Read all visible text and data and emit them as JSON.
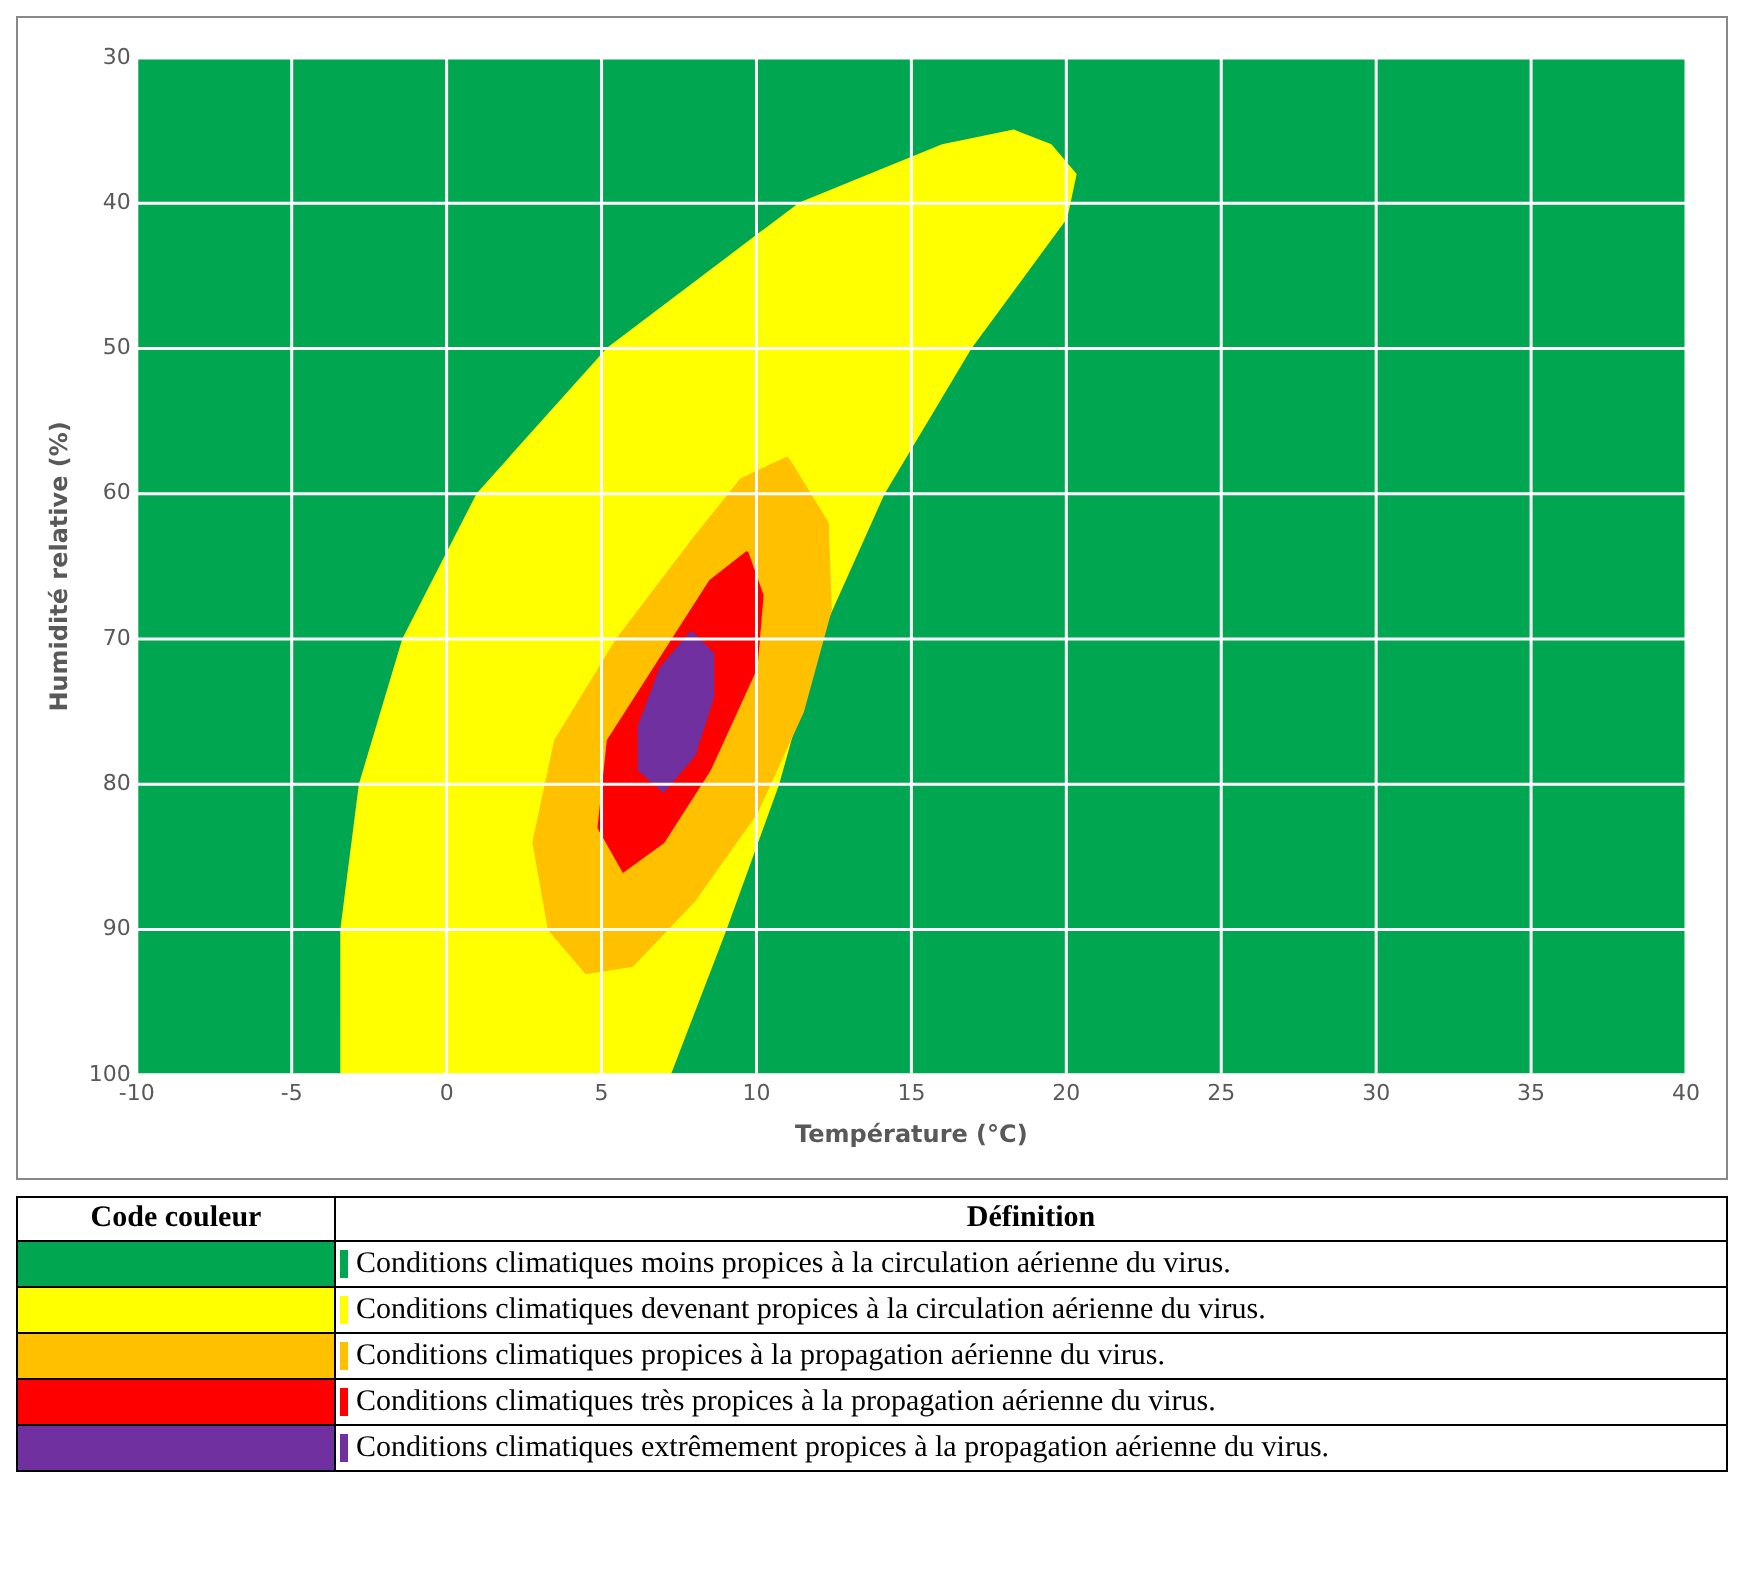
{
  "chart_data": {
    "type": "area",
    "xlabel": "Température (°C)",
    "ylabel": "Humidité relative (%)",
    "xlim": [
      -10,
      40
    ],
    "xticks": [
      -10,
      -5,
      0,
      5,
      10,
      15,
      20,
      25,
      30,
      35,
      40
    ],
    "ylim": [
      100,
      30
    ],
    "yticks": [
      30,
      40,
      50,
      60,
      70,
      80,
      90,
      100
    ],
    "grid": true,
    "legend": "bottom",
    "legend_title": "Code couleur",
    "annotations": [
      "Définition"
    ],
    "bands": [
      {
        "axis": "x",
        "from": -10,
        "to": 40,
        "label": "Conditions climatiques moins propices à la circulation aérienne du virus.",
        "color": "#00a650"
      }
    ],
    "series": [
      {
        "name": "Conditions climatiques devenant propices à la circulation aérienne du virus.",
        "color": "#ffff00",
        "x": [
          -3.4,
          -3.4,
          -2.8,
          -1.4,
          1,
          5.2,
          11.4,
          16,
          18.3,
          19.5,
          20.3,
          20,
          16.9,
          14.1,
          12,
          10.7,
          9,
          7.2,
          -3.4
        ],
        "values": [
          100,
          90,
          80,
          70,
          60,
          50,
          40,
          36,
          35,
          36,
          38,
          41,
          50,
          60,
          70,
          80,
          90,
          100,
          100
        ]
      },
      {
        "name": "Conditions climatiques propices à la propagation aérienne du virus.",
        "color": "#ffc000",
        "x": [
          11,
          12.3,
          12.4,
          11.5,
          10,
          8,
          6,
          4.5,
          3.3,
          2.8,
          3.5,
          5.5,
          8,
          9.5,
          11
        ],
        "values": [
          57.5,
          62,
          68,
          75,
          82,
          88,
          92.5,
          93,
          90,
          84,
          77,
          70,
          63,
          59,
          57.5
        ]
      },
      {
        "name": "Conditions climatiques très propices à la propagation aérienne du virus.",
        "color": "#ff0000",
        "x": [
          9.7,
          10.2,
          10,
          8.5,
          7,
          5.7,
          4.9,
          5.2,
          7,
          8.5,
          9.7
        ],
        "values": [
          64,
          67,
          72,
          79,
          84,
          86,
          83,
          77,
          71,
          66,
          64
        ]
      },
      {
        "name": "Conditions climatiques extrêmement propices à la propagation aérienne du virus.",
        "color": "#7030a0",
        "x": [
          7.9,
          8.6,
          8.6,
          8,
          7,
          6.2,
          6.2,
          6.9,
          7.9
        ],
        "values": [
          69.5,
          71,
          74,
          78,
          80.5,
          79,
          76,
          72,
          69.5
        ]
      }
    ]
  }
}
